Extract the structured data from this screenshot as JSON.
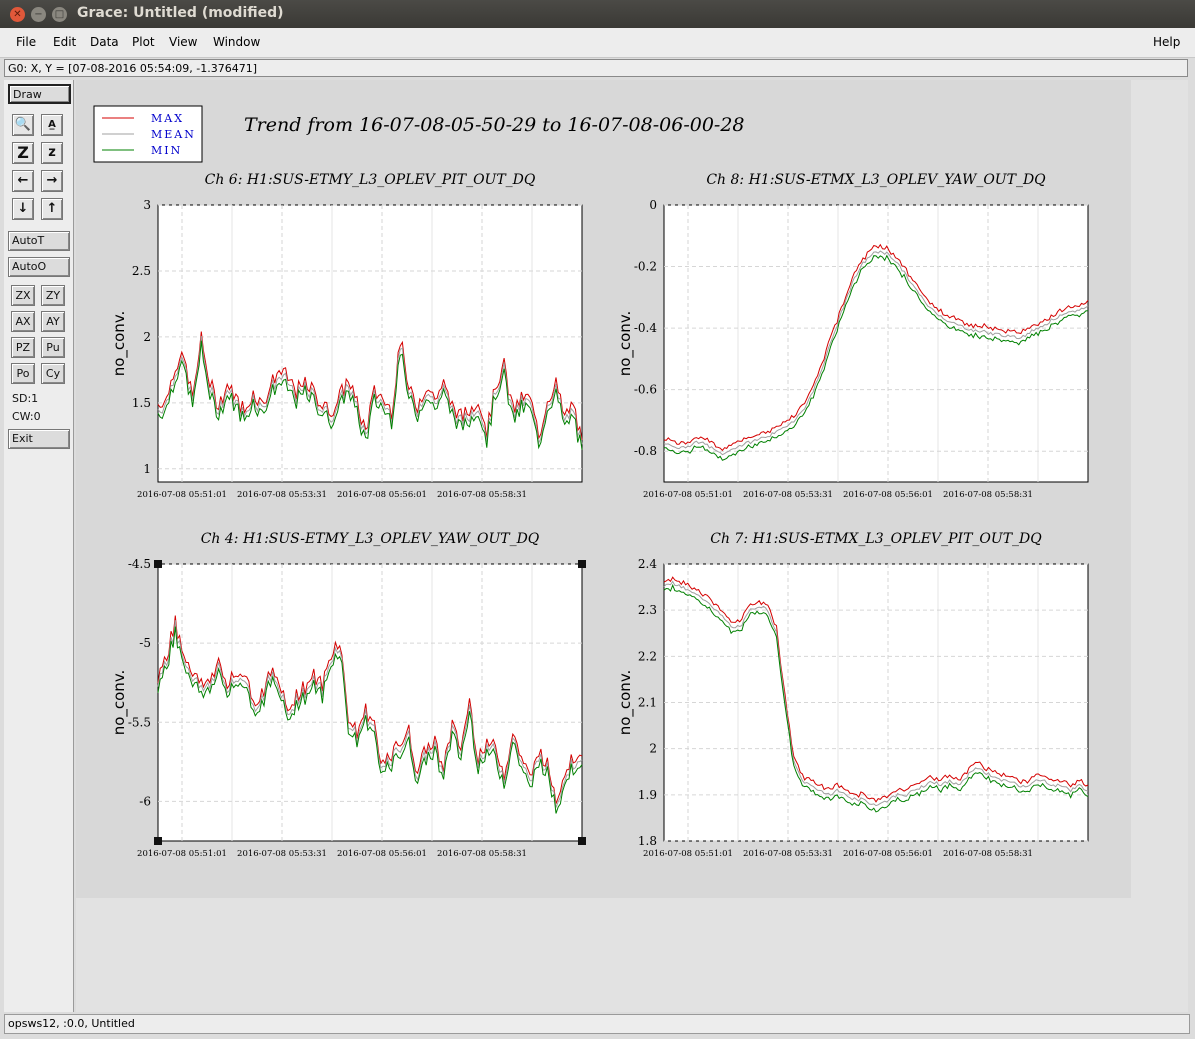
{
  "window": {
    "title": "Grace: Untitled (modified)"
  },
  "menu": {
    "file": "File",
    "edit": "Edit",
    "data": "Data",
    "plot": "Plot",
    "view": "View",
    "window": "Window",
    "help": "Help"
  },
  "coord_readout": "G0: X, Y = [07-08-2016 05:54:09, -1.376471]",
  "toolbar": {
    "draw": "Draw",
    "autot": "AutoT",
    "autoo": "AutoO",
    "zx": "ZX",
    "zy": "ZY",
    "ax": "AX",
    "ay": "AY",
    "pz": "PZ",
    "pu": "Pu",
    "po": "Po",
    "cy": "Cy",
    "sd": "SD:1",
    "cw": "CW:0",
    "exit": "Exit"
  },
  "status": "opsws12, :0.0, Untitled",
  "chart_data": {
    "type": "line",
    "title": "Trend from 16-07-08-05-50-29 to 16-07-08-06-00-28",
    "legend": {
      "placement": "top-left",
      "entries": [
        {
          "name": "MAX",
          "color": "#d40000"
        },
        {
          "name": "MEAN",
          "color": "#a0a0a0"
        },
        {
          "name": "MIN",
          "color": "#008000"
        }
      ]
    },
    "x_ticks": [
      "2016-07-08 05:51:01",
      "2016-07-08 05:53:31",
      "2016-07-08 05:56:01",
      "2016-07-08 05:58:31"
    ],
    "x_range": [
      "2016-07-08 05:50:29",
      "2016-07-08 06:00:28"
    ],
    "grid": true,
    "panels": [
      {
        "title": "Ch 6: H1:SUS-ETMY_L3_OPLEV_PIT_OUT_DQ",
        "ylabel": "no_conv.",
        "ylim": [
          0.9,
          3
        ],
        "yticks": [
          "3",
          "2.5",
          "2",
          "1.5",
          "1"
        ],
        "series": [
          {
            "name": "MEAN",
            "values": [
              1.45,
              1.5,
              1.75,
              1.8,
              1.5,
              1.95,
              1.6,
              1.45,
              1.6,
              1.5,
              1.4,
              1.55,
              1.45,
              1.6,
              1.7,
              1.65,
              1.55,
              1.6,
              1.55,
              1.45,
              1.4,
              1.5,
              1.65,
              1.45,
              1.25,
              1.55,
              1.5,
              1.4,
              1.95,
              1.55,
              1.45,
              1.6,
              1.5,
              1.6,
              1.45,
              1.35,
              1.4,
              1.5,
              1.25,
              1.6,
              1.75,
              1.4,
              1.5,
              1.5,
              1.2,
              1.5,
              1.6,
              1.35,
              1.45,
              1.15
            ]
          }
        ]
      },
      {
        "title": "Ch 8: H1:SUS-ETMX_L3_OPLEV_YAW_OUT_DQ",
        "ylabel": "no_conv.",
        "ylim": [
          -0.9,
          0
        ],
        "yticks": [
          "0",
          "-0.2",
          "-0.4",
          "-0.6",
          "-0.8"
        ],
        "series": [
          {
            "name": "MEAN",
            "values": [
              -0.78,
              -0.78,
              -0.79,
              -0.78,
              -0.77,
              -0.78,
              -0.8,
              -0.81,
              -0.79,
              -0.78,
              -0.77,
              -0.76,
              -0.75,
              -0.74,
              -0.72,
              -0.7,
              -0.67,
              -0.62,
              -0.55,
              -0.47,
              -0.39,
              -0.31,
              -0.24,
              -0.19,
              -0.16,
              -0.15,
              -0.16,
              -0.19,
              -0.23,
              -0.27,
              -0.31,
              -0.34,
              -0.36,
              -0.38,
              -0.39,
              -0.4,
              -0.41,
              -0.41,
              -0.42,
              -0.42,
              -0.43,
              -0.43,
              -0.42,
              -0.4,
              -0.39,
              -0.37,
              -0.36,
              -0.35,
              -0.34,
              -0.33
            ]
          }
        ]
      },
      {
        "title": "Ch 4: H1:SUS-ETMY_L3_OPLEV_YAW_OUT_DQ",
        "ylabel": "no_conv.",
        "ylim": [
          -6.25,
          -4.5
        ],
        "yticks": [
          "-4.5",
          "-5",
          "-5.5",
          "-6"
        ],
        "series": [
          {
            "name": "MEAN",
            "values": [
              -5.25,
              -5.1,
              -4.9,
              -5.1,
              -5.2,
              -5.3,
              -5.25,
              -5.15,
              -5.3,
              -5.25,
              -5.2,
              -5.4,
              -5.35,
              -5.2,
              -5.3,
              -5.45,
              -5.35,
              -5.3,
              -5.25,
              -5.3,
              -5.1,
              -5.0,
              -5.5,
              -5.6,
              -5.45,
              -5.55,
              -5.8,
              -5.75,
              -5.65,
              -5.6,
              -5.85,
              -5.7,
              -5.65,
              -5.8,
              -5.55,
              -5.7,
              -5.4,
              -5.75,
              -5.65,
              -5.7,
              -5.85,
              -5.6,
              -5.75,
              -5.9,
              -5.7,
              -5.8,
              -6.0,
              -5.85,
              -5.75,
              -5.7
            ]
          }
        ]
      },
      {
        "title": "Ch 7: H1:SUS-ETMX_L3_OPLEV_PIT_OUT_DQ",
        "ylabel": "no_conv.",
        "ylim": [
          1.8,
          2.4
        ],
        "yticks": [
          "2.4",
          "2.3",
          "2.2",
          "2.1",
          "2",
          "1.9",
          "1.8"
        ],
        "series": [
          {
            "name": "MEAN",
            "values": [
              2.35,
              2.36,
              2.35,
              2.34,
              2.33,
              2.32,
              2.3,
              2.28,
              2.26,
              2.27,
              2.3,
              2.31,
              2.3,
              2.25,
              2.1,
              1.97,
              1.93,
              1.92,
              1.91,
              1.9,
              1.91,
              1.9,
              1.89,
              1.89,
              1.88,
              1.88,
              1.89,
              1.9,
              1.9,
              1.91,
              1.92,
              1.93,
              1.92,
              1.93,
              1.92,
              1.94,
              1.96,
              1.95,
              1.94,
              1.93,
              1.93,
              1.92,
              1.92,
              1.93,
              1.93,
              1.92,
              1.92,
              1.91,
              1.92,
              1.91
            ]
          }
        ]
      }
    ]
  }
}
